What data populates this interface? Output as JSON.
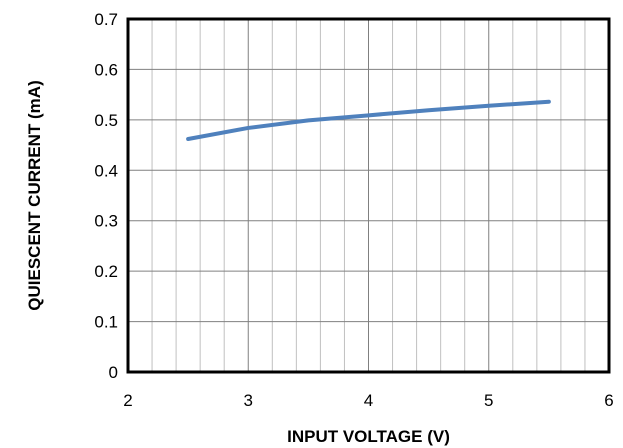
{
  "chart_data": {
    "type": "line",
    "title": "",
    "xlabel": "INPUT VOLTAGE (V)",
    "ylabel": "QUIESCENT CURRENT (mA)",
    "xlim": [
      2,
      6
    ],
    "ylim": [
      0,
      0.7
    ],
    "x_major_ticks": [
      2,
      3,
      4,
      5,
      6
    ],
    "x_tick_labels": [
      "2",
      "3",
      "4",
      "5",
      "6"
    ],
    "y_major_ticks": [
      0,
      0.1,
      0.2,
      0.3,
      0.4,
      0.5,
      0.6,
      0.7
    ],
    "y_tick_labels": [
      "0",
      "0.1",
      "0.2",
      "0.3",
      "0.4",
      "0.5",
      "0.6",
      "0.7"
    ],
    "x_minor_step": 0.2,
    "grid": true,
    "legend": "none",
    "colors": {
      "series": "#4f81bd",
      "major_grid": "#808080",
      "minor_grid": "#c0c0c0",
      "frame": "#000000"
    },
    "series": [
      {
        "x": [
          2.5,
          3.0,
          3.5,
          4.0,
          4.5,
          5.0,
          5.5
        ],
        "y": [
          0.462,
          0.484,
          0.499,
          0.509,
          0.519,
          0.528,
          0.536
        ]
      }
    ]
  }
}
